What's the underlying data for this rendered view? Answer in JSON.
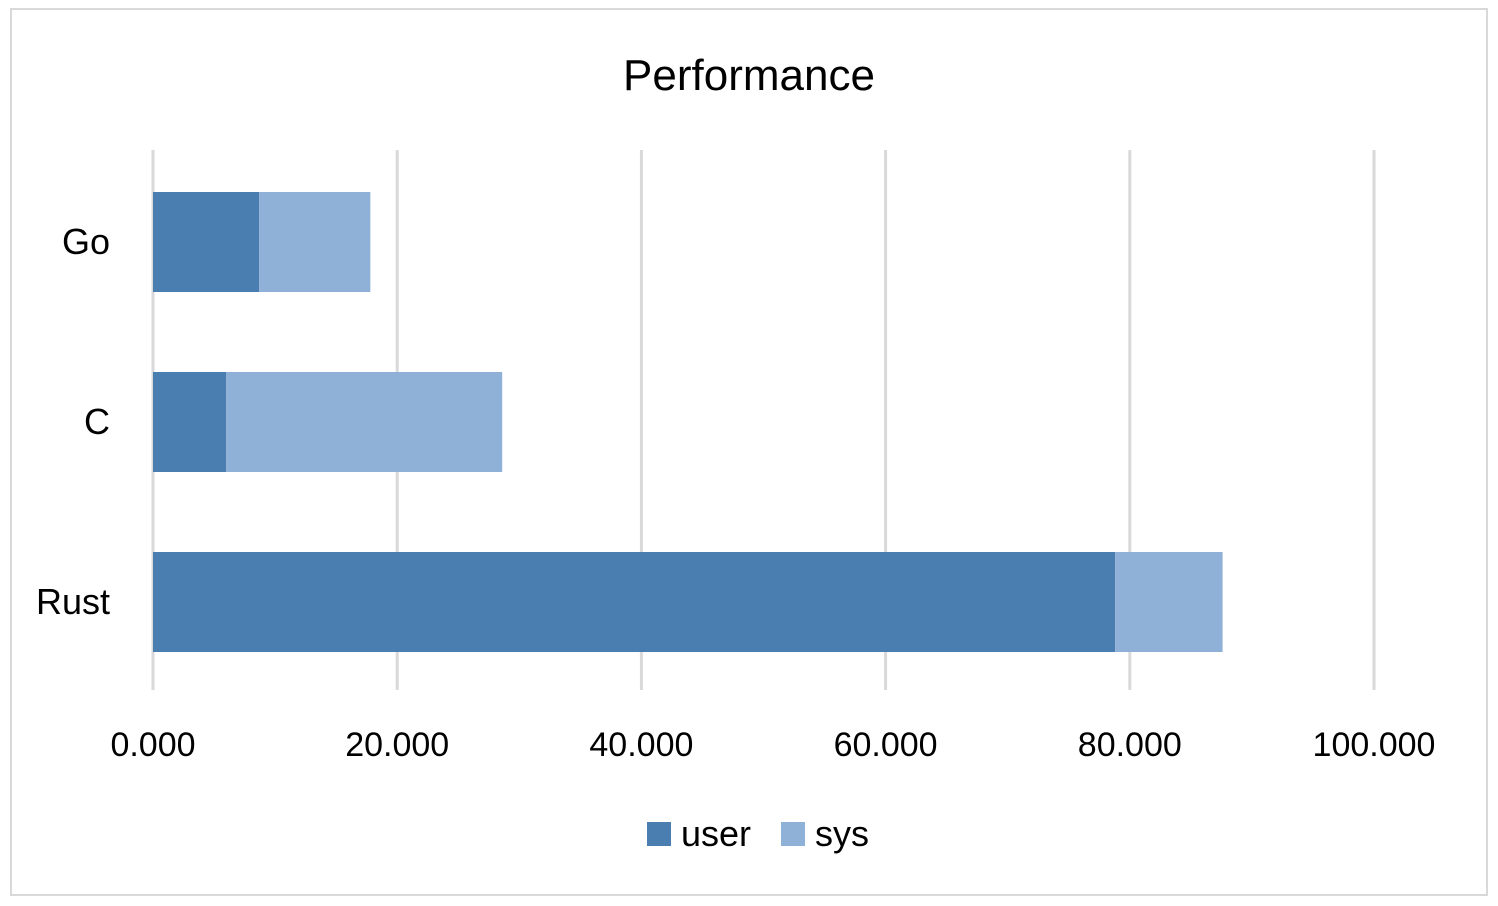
{
  "chart_data": {
    "type": "bar",
    "orientation": "horizontal",
    "stacked": true,
    "title": "Performance",
    "xlabel": "",
    "ylabel": "",
    "categories": [
      "Go",
      "C",
      "Rust"
    ],
    "series": [
      {
        "name": "user",
        "color": "#4a7eb0",
        "values": [
          8.7,
          6.0,
          78.8
        ]
      },
      {
        "name": "sys",
        "color": "#8fb0d7",
        "values": [
          9.1,
          22.6,
          8.8
        ]
      }
    ],
    "xlim": [
      0,
      100
    ],
    "xticks": [
      0,
      20,
      40,
      60,
      80,
      100
    ],
    "xtick_labels": [
      "0.000",
      "20.000",
      "40.000",
      "60.000",
      "80.000",
      "100.000"
    ],
    "grid": "vertical",
    "legend_position": "bottom"
  }
}
